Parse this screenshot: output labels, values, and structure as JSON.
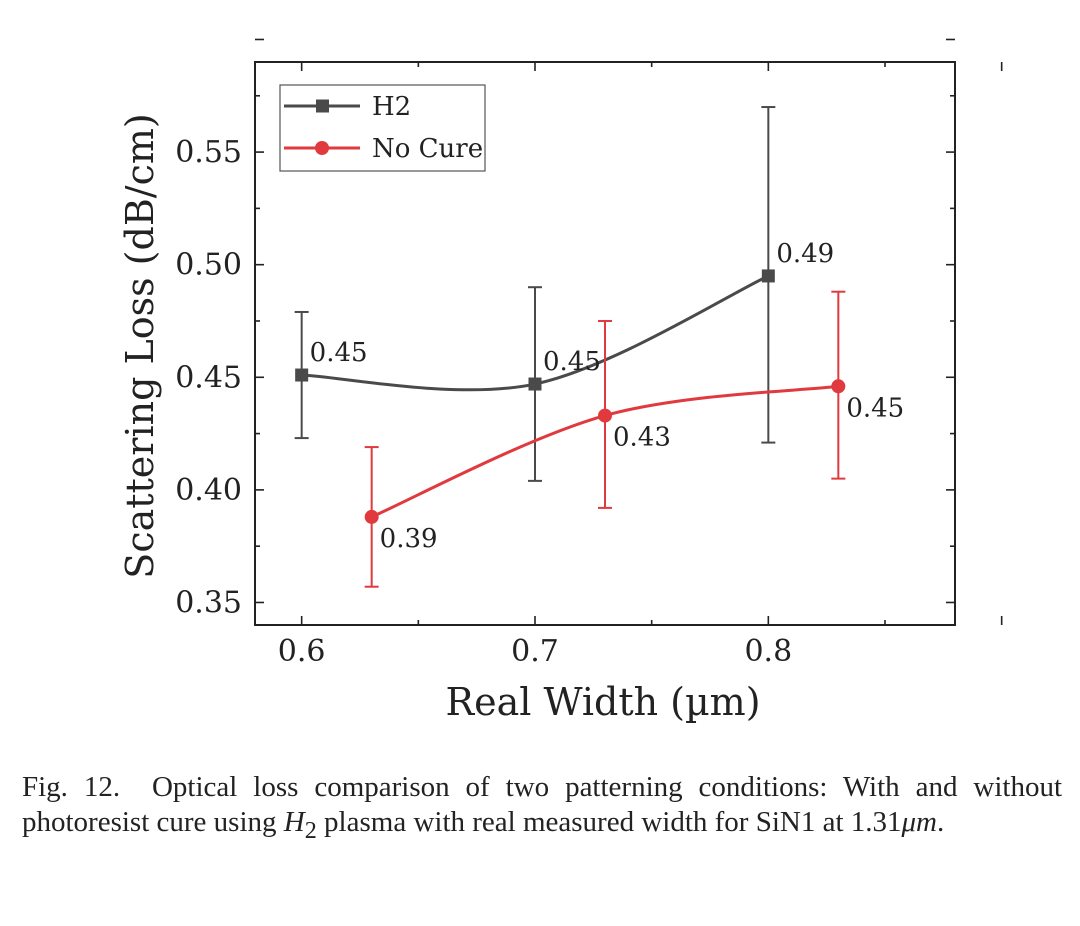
{
  "chart_data": {
    "type": "line",
    "xlabel": "Real Width (µm)",
    "ylabel": "Scattering Loss (dB/cm)",
    "xlim": [
      0.58,
      0.88
    ],
    "ylim": [
      0.34,
      0.59
    ],
    "x_ticks": [
      0.6,
      0.7,
      0.8
    ],
    "x_tick_labels": [
      "0.6",
      "0.7",
      "0.8"
    ],
    "y_ticks": [
      0.35,
      0.4,
      0.45,
      0.5,
      0.55
    ],
    "y_tick_labels": [
      "0.35",
      "0.40",
      "0.45",
      "0.50",
      "0.55"
    ],
    "grid": false,
    "legend_position": "top-left",
    "series": [
      {
        "name": "H2",
        "color": "#4a4a4a",
        "marker": "square",
        "x": [
          0.6,
          0.7,
          0.8
        ],
        "y": [
          0.451,
          0.447,
          0.495
        ],
        "err_low": [
          0.423,
          0.404,
          0.421
        ],
        "err_high": [
          0.479,
          0.49,
          0.57
        ],
        "labels": [
          "0.45",
          "0.45",
          "0.49"
        ],
        "label_anchor": [
          "above-right",
          "above-right",
          "above-right"
        ]
      },
      {
        "name": "No Cure",
        "color": "#e0393e",
        "marker": "circle",
        "x": [
          0.63,
          0.73,
          0.83
        ],
        "y": [
          0.388,
          0.433,
          0.446
        ],
        "err_low": [
          0.357,
          0.392,
          0.405
        ],
        "err_high": [
          0.419,
          0.475,
          0.488
        ],
        "labels": [
          "0.39",
          "0.43",
          "0.45"
        ],
        "label_anchor": [
          "below-right",
          "below-right",
          "below-right"
        ]
      }
    ]
  },
  "caption": {
    "prefix": "Fig. 12.",
    "text_1": "Optical loss comparison of two patterning conditions: With and without photoresist cure using",
    "math_h": "H",
    "math_sub": "2",
    "text_2": "plasma with real measured width for SiN1 at 1.31",
    "math_unit": "μm",
    "text_3": "."
  }
}
